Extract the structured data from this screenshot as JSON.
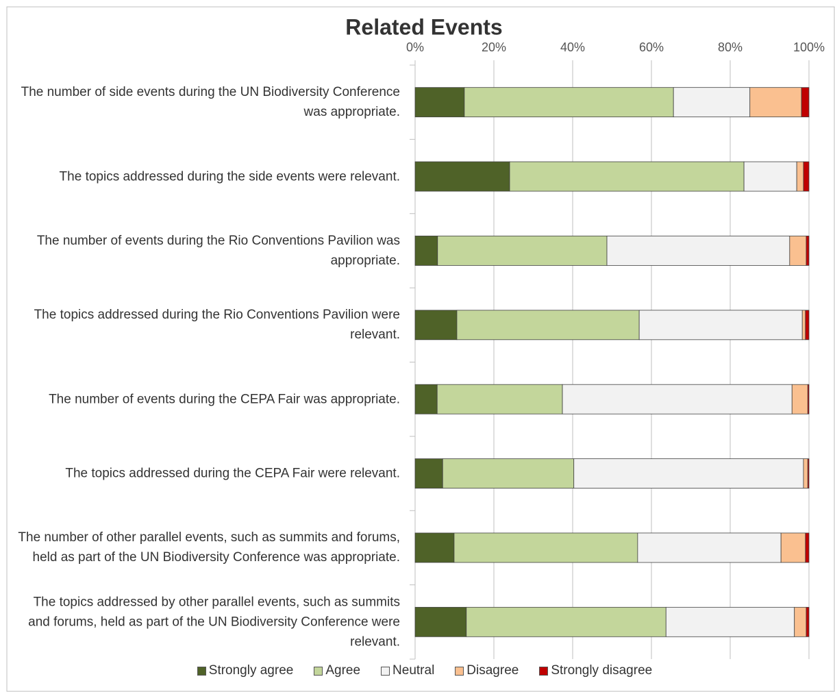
{
  "chart_data": {
    "type": "stacked-bar-horizontal",
    "title": "Related Events",
    "categories": [
      "The number of side events during the UN Biodiversity Conference was appropriate.",
      "The topics addressed during the side events were relevant.",
      "The number of events during the Rio Conventions Pavilion was appropriate.",
      "The topics addressed during the Rio Conventions Pavilion were relevant.",
      "The number of events during the CEPA Fair was appropriate.",
      "The topics addressed during the CEPA Fair were relevant.",
      "The number of other parallel events, such as summits and forums, held as part of the UN Biodiversity Conference was appropriate.",
      "The topics addressed by other parallel events, such as summits and forums, held as part of the UN Biodiversity Conference were relevant."
    ],
    "series": [
      {
        "name": "Strongly agree",
        "color": "#4f6228",
        "values": [
          12.5,
          24.0,
          5.7,
          10.6,
          5.6,
          7.0,
          9.9,
          13.0
        ]
      },
      {
        "name": "Agree",
        "color": "#c3d69b",
        "values": [
          53.1,
          59.5,
          43.0,
          46.3,
          31.8,
          33.3,
          46.6,
          50.7
        ]
      },
      {
        "name": "Neutral",
        "color": "#f2f2f2",
        "values": [
          19.4,
          13.4,
          46.4,
          41.4,
          58.3,
          58.3,
          36.4,
          32.6
        ]
      },
      {
        "name": "Disagree",
        "color": "#fac090",
        "values": [
          13.1,
          1.7,
          4.2,
          0.8,
          4.0,
          1.1,
          6.2,
          3.0
        ]
      },
      {
        "name": "Strongly disagree",
        "color": "#c00000",
        "values": [
          1.9,
          1.4,
          0.7,
          0.9,
          0.3,
          0.3,
          0.9,
          0.7
        ]
      }
    ],
    "xlim": [
      0,
      100
    ],
    "xticks": [
      {
        "value": 0,
        "label": "0%"
      },
      {
        "value": 20,
        "label": "20%"
      },
      {
        "value": 40,
        "label": "40%"
      },
      {
        "value": 60,
        "label": "60%"
      },
      {
        "value": 80,
        "label": "80%"
      },
      {
        "value": 100,
        "label": "100%"
      }
    ],
    "grid": true,
    "legend": "bottom"
  }
}
